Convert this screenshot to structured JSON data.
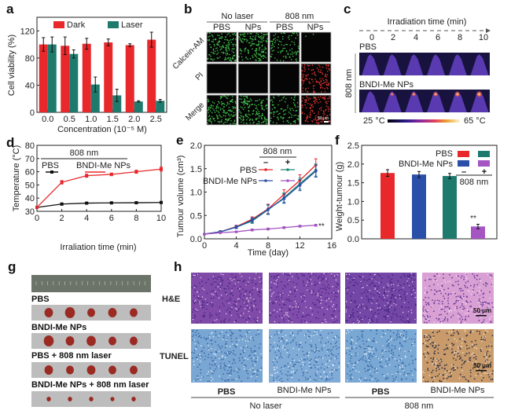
{
  "panel_labels": {
    "a": "a",
    "b": "b",
    "c": "c",
    "d": "d",
    "e": "e",
    "f": "f",
    "g": "g",
    "h": "h"
  },
  "chart_data": [
    {
      "id": "a",
      "type": "bar",
      "categories": [
        "0.0",
        "0.5",
        "1.0",
        "1.5",
        "2.0",
        "2.5"
      ],
      "series": [
        {
          "name": "Dark",
          "color": "#e8282b",
          "values": [
            100,
            98,
            101,
            103,
            99,
            107
          ],
          "errors": [
            10,
            13,
            8,
            5,
            2,
            11
          ]
        },
        {
          "name": "Laser",
          "color": "#1f7a6e",
          "values": [
            100,
            86,
            41,
            25,
            16,
            17
          ],
          "errors": [
            11,
            6,
            11,
            9,
            1,
            2
          ]
        }
      ],
      "xlabel": "Concentration (10⁻⁵ M)",
      "ylabel": "Cell viability (%)",
      "ylim": [
        0,
        140
      ],
      "yticks": [
        0,
        40,
        80,
        120
      ],
      "legend": "top"
    },
    {
      "id": "d",
      "type": "line",
      "x": [
        0,
        2,
        4,
        6,
        8,
        10
      ],
      "series": [
        {
          "name": "PBS",
          "color": "#111111",
          "values": [
            33,
            35.5,
            36.2,
            36.4,
            36.5,
            36.7
          ],
          "errors": [
            0.5,
            0.8,
            0.6,
            0.5,
            0.6,
            0.7
          ]
        },
        {
          "name": "BNDI-Me NPs",
          "color": "#e8282b",
          "values": [
            33,
            52,
            57,
            58,
            60,
            62
          ],
          "errors": [
            0.5,
            1.3,
            1.2,
            1.0,
            1.2,
            1.5
          ]
        }
      ],
      "legend_title": "808 nm",
      "xlabel": "Irraliation time (min)",
      "ylabel": "Temperature (°C)",
      "xlim": [
        0,
        10
      ],
      "ylim": [
        30,
        80
      ],
      "xticks": [
        0,
        2,
        4,
        6,
        8,
        10
      ],
      "yticks": [
        30,
        40,
        50,
        60,
        70,
        80
      ]
    },
    {
      "id": "e",
      "type": "line",
      "x": [
        0,
        2,
        4,
        6,
        8,
        10,
        12,
        14
      ],
      "series": [
        {
          "name": "PBS, no laser",
          "color": "#e8282b",
          "values": [
            0.1,
            0.15,
            0.26,
            0.42,
            0.64,
            0.95,
            1.25,
            1.58
          ],
          "errors": [
            0.01,
            0.02,
            0.03,
            0.05,
            0.1,
            0.1,
            0.12,
            0.13
          ]
        },
        {
          "name": "PBS, 808 nm",
          "color": "#1f8a78",
          "values": [
            0.1,
            0.15,
            0.25,
            0.38,
            0.62,
            0.88,
            1.18,
            1.47
          ],
          "errors": [
            0.01,
            0.02,
            0.03,
            0.05,
            0.1,
            0.1,
            0.12,
            0.13
          ]
        },
        {
          "name": "BNDI-Me NPs, no laser",
          "color": "#2a4fa8",
          "values": [
            0.1,
            0.15,
            0.25,
            0.4,
            0.63,
            0.86,
            1.15,
            1.45
          ],
          "errors": [
            0.01,
            0.02,
            0.03,
            0.05,
            0.1,
            0.1,
            0.12,
            0.13
          ]
        },
        {
          "name": "BNDI-Me NPs, 808 nm",
          "color": "#a455c2",
          "values": [
            0.1,
            0.13,
            0.15,
            0.19,
            0.21,
            0.24,
            0.27,
            0.29
          ],
          "errors": [
            0.01,
            0.01,
            0.01,
            0.02,
            0.02,
            0.02,
            0.02,
            0.02
          ]
        }
      ],
      "legend_title": "808 nm",
      "legend_minus": "–",
      "legend_plus": "+",
      "legend_rows": [
        "PBS",
        "BNDI-Me NPs"
      ],
      "annotation": "**",
      "xlabel": "Time (day)",
      "ylabel": "Tumour volume (cm³)",
      "xlim": [
        0,
        16
      ],
      "ylim": [
        0,
        2.0
      ],
      "xticks": [
        0,
        4,
        8,
        12,
        16
      ],
      "yticks": [
        0.0,
        0.5,
        1.0,
        1.5,
        2.0
      ]
    },
    {
      "id": "f",
      "type": "bar",
      "categories": [
        "PBS –",
        "BNDI-Me NPs –",
        "PBS +",
        "BNDI-Me NPs +"
      ],
      "values": [
        1.76,
        1.72,
        1.68,
        0.33
      ],
      "errors": [
        0.09,
        0.08,
        0.07,
        0.06
      ],
      "colors": [
        "#e8282b",
        "#2a4fa8",
        "#1f7a6e",
        "#a455c2"
      ],
      "legend_rows": [
        "PBS",
        "BNDI-Me NPs"
      ],
      "legend_minus": "–",
      "legend_plus": "+",
      "legend_title": "808 nm",
      "annotation": "**",
      "ylabel": "Weight-tumour (g)",
      "ylim": [
        0,
        2.5
      ],
      "yticks": [
        0.0,
        0.5,
        1.0,
        1.5,
        2.0,
        2.5
      ]
    }
  ],
  "panel_b": {
    "group1": "No laser",
    "group2": "808 nm",
    "columns": [
      "PBS",
      "NPs",
      "PBS",
      "NPs"
    ],
    "rows": [
      "Calcein-AM",
      "PI",
      "Merge"
    ],
    "scale_bar": "50 μm"
  },
  "panel_c": {
    "title": "Irradiation time (min)",
    "times": [
      "0",
      "2",
      "4",
      "6",
      "8",
      "10"
    ],
    "row1": "PBS",
    "row2": "BNDI-Me NPs",
    "side_label": "808 nm",
    "cbar_min": "25 °C",
    "cbar_max": "65 °C"
  },
  "panel_g": {
    "groups": [
      "PBS",
      "BNDI-Me NPs",
      "PBS + 808 nm laser",
      "BNDI-Me NPs + 808 nm laser"
    ]
  },
  "panel_h": {
    "rows": [
      "H&E",
      "TUNEL"
    ],
    "columns": [
      "PBS",
      "BNDI-Me NPs",
      "PBS",
      "BNDI-Me NPs"
    ],
    "group1": "No laser",
    "group2": "808 nm",
    "scale_bar": "50 μm"
  }
}
